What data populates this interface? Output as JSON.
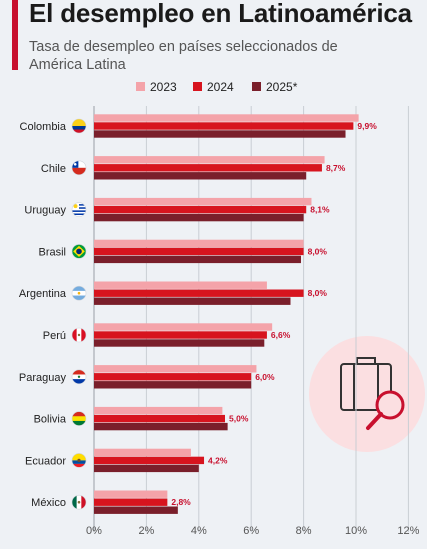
{
  "header": {
    "title": "El desempleo en Latinoamérica",
    "subtitle": "Tasa de desempleo en países seleccionados de América Latina"
  },
  "chart_data": {
    "type": "bar",
    "orientation": "horizontal",
    "title": "El desempleo en Latinoamérica",
    "subtitle": "Tasa de desempleo en países seleccionados de América Latina",
    "categories": [
      "Colombia",
      "Chile",
      "Uruguay",
      "Brasil",
      "Argentina",
      "Perú",
      "Paraguay",
      "Bolivia",
      "Ecuador",
      "México"
    ],
    "series": [
      {
        "name": "2023",
        "color": "#f4a3a9",
        "values": [
          10.1,
          8.8,
          8.3,
          8.0,
          6.6,
          6.8,
          6.2,
          4.9,
          3.7,
          2.8
        ]
      },
      {
        "name": "2024",
        "color": "#d7141e",
        "values": [
          9.9,
          8.7,
          8.1,
          8.0,
          8.0,
          6.6,
          6.0,
          5.0,
          4.2,
          2.8
        ]
      },
      {
        "name": "2025*",
        "color": "#7a1f2b",
        "values": [
          9.6,
          8.1,
          8.0,
          7.9,
          7.5,
          6.5,
          6.0,
          5.1,
          4.0,
          3.2
        ]
      }
    ],
    "data_labels": [
      "9,9%",
      "8,7%",
      "8,1%",
      "8,0%",
      "8,0%",
      "6,6%",
      "6,0%",
      "5,0%",
      "4,2%",
      "2,8%"
    ],
    "xlim": [
      0,
      12
    ],
    "x_ticks": [
      "0%",
      "2%",
      "4%",
      "6%",
      "8%",
      "10%",
      "12%"
    ],
    "grid": true,
    "legend_position": "top"
  },
  "flags": [
    "colombia-flag-icon",
    "chile-flag-icon",
    "uruguay-flag-icon",
    "brasil-flag-icon",
    "argentina-flag-icon",
    "peru-flag-icon",
    "paraguay-flag-icon",
    "bolivia-flag-icon",
    "ecuador-flag-icon",
    "mexico-flag-icon"
  ],
  "decoration": "magnifier-briefcase-icon"
}
